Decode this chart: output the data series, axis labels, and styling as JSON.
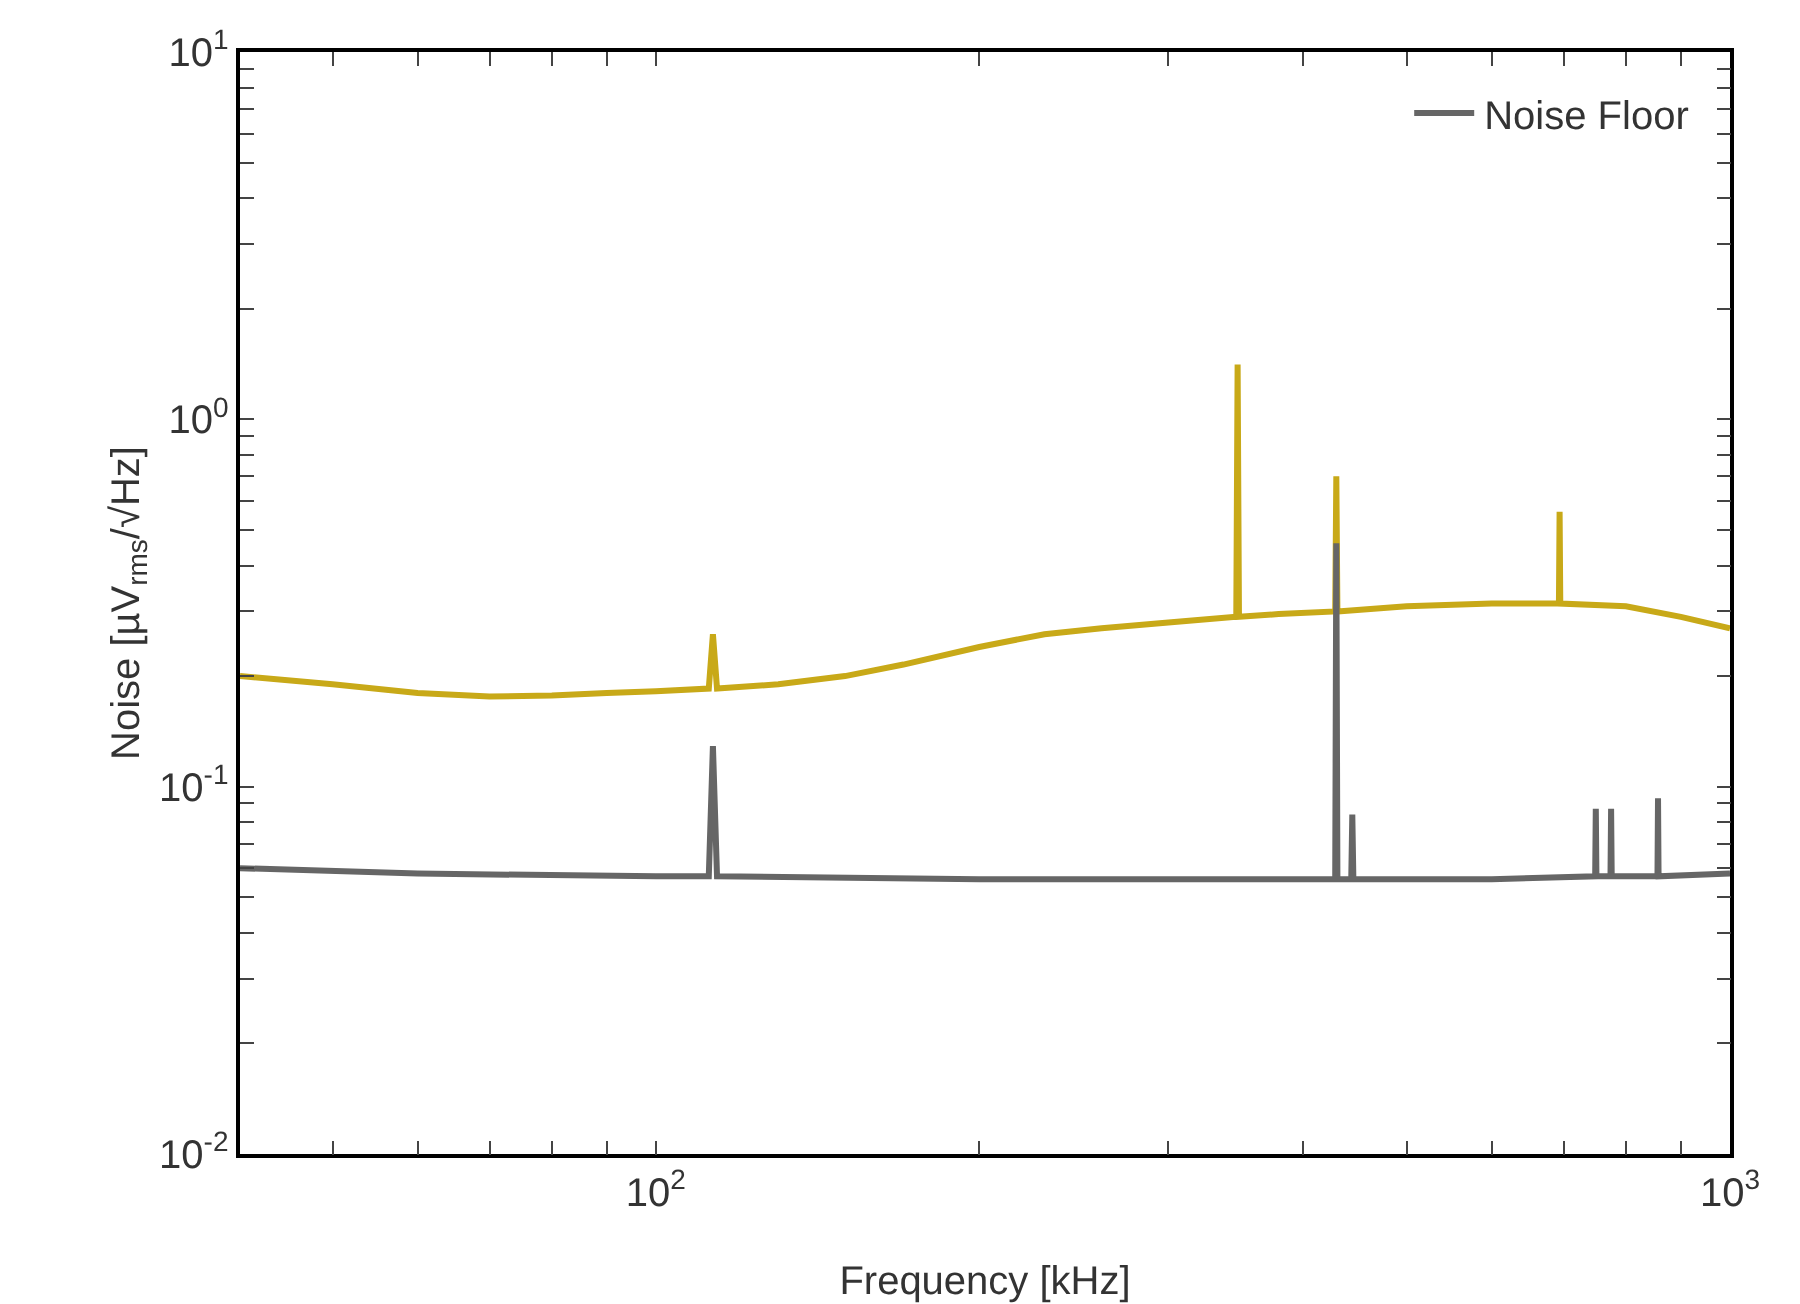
{
  "chart_data": {
    "type": "line",
    "xlabel": "Frequency [kHz]",
    "ylabel": "Noise [µV$_{rms}$/√Hz]",
    "log": "xy",
    "xlim": [
      41,
      1000
    ],
    "ylim": [
      0.01,
      10
    ],
    "xticks": [
      {
        "value": 50,
        "label": null
      },
      {
        "value": 60,
        "label": null
      },
      {
        "value": 70,
        "label": null
      },
      {
        "value": 80,
        "label": null
      },
      {
        "value": 90,
        "label": null
      },
      {
        "value": 100,
        "label": "10$^{2}$"
      },
      {
        "value": 200,
        "label": null
      },
      {
        "value": 300,
        "label": null
      },
      {
        "value": 400,
        "label": null
      },
      {
        "value": 500,
        "label": null
      },
      {
        "value": 600,
        "label": null
      },
      {
        "value": 700,
        "label": null
      },
      {
        "value": 800,
        "label": null
      },
      {
        "value": 900,
        "label": null
      },
      {
        "value": 1000,
        "label": "10$^{3}$"
      }
    ],
    "yticks": [
      {
        "value": 0.01,
        "label": "10$^{-2}$"
      },
      {
        "value": 0.02,
        "label": null
      },
      {
        "value": 0.03,
        "label": null
      },
      {
        "value": 0.04,
        "label": null
      },
      {
        "value": 0.05,
        "label": null
      },
      {
        "value": 0.06,
        "label": null
      },
      {
        "value": 0.07,
        "label": null
      },
      {
        "value": 0.08,
        "label": null
      },
      {
        "value": 0.09,
        "label": null
      },
      {
        "value": 0.1,
        "label": "10$^{-1}$"
      },
      {
        "value": 0.2,
        "label": null
      },
      {
        "value": 0.3,
        "label": null
      },
      {
        "value": 0.4,
        "label": null
      },
      {
        "value": 0.5,
        "label": null
      },
      {
        "value": 0.6,
        "label": null
      },
      {
        "value": 0.7,
        "label": null
      },
      {
        "value": 0.8,
        "label": null
      },
      {
        "value": 0.9,
        "label": null
      },
      {
        "value": 1,
        "label": "10$^{0}$"
      },
      {
        "value": 2,
        "label": null
      },
      {
        "value": 3,
        "label": null
      },
      {
        "value": 4,
        "label": null
      },
      {
        "value": 5,
        "label": null
      },
      {
        "value": 6,
        "label": null
      },
      {
        "value": 7,
        "label": null
      },
      {
        "value": 8,
        "label": null
      },
      {
        "value": 9,
        "label": null
      },
      {
        "value": 10,
        "label": "10$^{1}$"
      }
    ],
    "grid": false,
    "legend": "top right",
    "marker": "none",
    "line_style": "solid",
    "series": [
      {
        "color": "#c8a918",
        "x": [
          41,
          50,
          60,
          70,
          80,
          90,
          100,
          112,
          113,
          114,
          130,
          150,
          170,
          200,
          230,
          260,
          300,
          347,
          348,
          349,
          380,
          429,
          430,
          431,
          500,
          600,
          693,
          694,
          695,
          800,
          900,
          1000
        ],
        "values": [
          0.2,
          0.19,
          0.18,
          0.176,
          0.177,
          0.18,
          0.182,
          0.185,
          0.26,
          0.185,
          0.19,
          0.2,
          0.215,
          0.24,
          0.26,
          0.27,
          0.28,
          0.29,
          1.41,
          0.29,
          0.295,
          0.3,
          0.7,
          0.3,
          0.31,
          0.315,
          0.315,
          0.56,
          0.315,
          0.31,
          0.29,
          0.27
        ]
      },
      {
        "name": "Noise Floor",
        "color": "#666666",
        "x": [
          41,
          60,
          100,
          112,
          113,
          114,
          200,
          300,
          429,
          430,
          431,
          444,
          445,
          446,
          600,
          749,
          750,
          751,
          774,
          775,
          776,
          856,
          857,
          858,
          1000
        ],
        "values": [
          0.06,
          0.058,
          0.057,
          0.057,
          0.129,
          0.057,
          0.056,
          0.056,
          0.056,
          0.46,
          0.056,
          0.056,
          0.084,
          0.056,
          0.056,
          0.057,
          0.087,
          0.057,
          0.057,
          0.087,
          0.057,
          0.057,
          0.093,
          0.057,
          0.058
        ]
      }
    ]
  }
}
